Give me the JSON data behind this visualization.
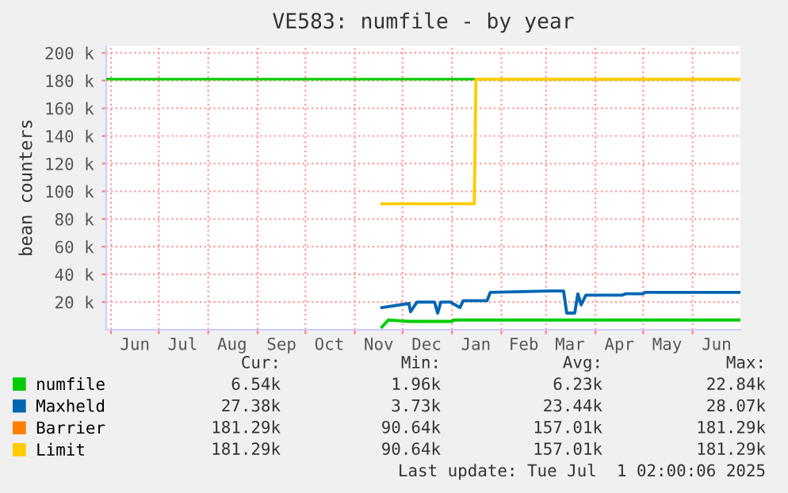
{
  "chart_data": {
    "type": "line",
    "title": "VE583: numfile - by year",
    "ylabel": "bean counters",
    "xlim": [
      "2024-05-29",
      "2025-07-01"
    ],
    "xticks": [
      {
        "value": "2024-06-01",
        "label": null
      },
      {
        "value": "2024-06-16",
        "label": "Jun"
      },
      {
        "value": "2024-07-01",
        "label": null
      },
      {
        "value": "2024-07-16",
        "label": "Jul"
      },
      {
        "value": "2024-08-01",
        "label": null
      },
      {
        "value": "2024-08-16",
        "label": "Aug"
      },
      {
        "value": "2024-09-01",
        "label": null
      },
      {
        "value": "2024-09-16",
        "label": "Sep"
      },
      {
        "value": "2024-10-01",
        "label": null
      },
      {
        "value": "2024-10-16",
        "label": "Oct"
      },
      {
        "value": "2024-11-01",
        "label": null
      },
      {
        "value": "2024-11-16",
        "label": "Nov"
      },
      {
        "value": "2024-12-01",
        "label": null
      },
      {
        "value": "2024-12-16",
        "label": "Dec"
      },
      {
        "value": "2025-01-01",
        "label": null
      },
      {
        "value": "2025-01-16",
        "label": "Jan"
      },
      {
        "value": "2025-02-01",
        "label": null
      },
      {
        "value": "2025-02-15",
        "label": "Feb"
      },
      {
        "value": "2025-03-01",
        "label": null
      },
      {
        "value": "2025-03-16",
        "label": "Mar"
      },
      {
        "value": "2025-04-01",
        "label": null
      },
      {
        "value": "2025-04-16",
        "label": "Apr"
      },
      {
        "value": "2025-05-01",
        "label": null
      },
      {
        "value": "2025-05-16",
        "label": "May"
      },
      {
        "value": "2025-06-01",
        "label": null
      },
      {
        "value": "2025-06-16",
        "label": "Jun"
      }
    ],
    "ylim": [
      0,
      205000
    ],
    "yticks": [
      {
        "value": 20000,
        "label": "20 k"
      },
      {
        "value": 40000,
        "label": "40 k"
      },
      {
        "value": 60000,
        "label": "60 k"
      },
      {
        "value": 80000,
        "label": "80 k"
      },
      {
        "value": 100000,
        "label": "100 k"
      },
      {
        "value": 120000,
        "label": "120 k"
      },
      {
        "value": 140000,
        "label": "140 k"
      },
      {
        "value": 160000,
        "label": "160 k"
      },
      {
        "value": 180000,
        "label": "180 k"
      },
      {
        "value": 200000,
        "label": "200 k"
      }
    ],
    "grid": true,
    "legend": "bottom left",
    "marker": "none",
    "line_style": "solid",
    "ref_lines": [
      {
        "axis": "y",
        "value": 181000,
        "color": "#00cc00"
      }
    ],
    "series": [
      {
        "name": "numfile",
        "color": "#00cc00",
        "x": [
          "2024-11-18",
          "2024-11-22",
          "2024-12-05",
          "2025-01-01",
          "2025-01-02",
          "2025-07-01"
        ],
        "values": [
          2000,
          7000,
          6000,
          6000,
          7000,
          7000
        ]
      },
      {
        "name": "Maxheld",
        "color": "#0066b3",
        "x": [
          "2024-11-18",
          "2024-12-05",
          "2024-12-06",
          "2024-12-10",
          "2024-12-21",
          "2024-12-23",
          "2024-12-25",
          "2024-12-31",
          "2025-01-06",
          "2025-01-08",
          "2025-01-23",
          "2025-01-25",
          "2025-03-03",
          "2025-03-12",
          "2025-03-14",
          "2025-03-19",
          "2025-03-21",
          "2025-03-23",
          "2025-03-26",
          "2025-04-18",
          "2025-04-20",
          "2025-05-01",
          "2025-05-02",
          "2025-07-01"
        ],
        "values": [
          16000,
          19000,
          13000,
          20000,
          20000,
          12000,
          20000,
          20000,
          16000,
          21000,
          21000,
          27000,
          28000,
          28000,
          12000,
          12000,
          26000,
          18000,
          25000,
          25000,
          26000,
          26000,
          27000,
          27000
        ]
      },
      {
        "name": "Barrier",
        "color": "#ff8000"
      },
      {
        "name": "Limit",
        "color": "#ffcc00",
        "x": [
          "2024-11-18",
          "2025-01-15",
          "2025-01-16",
          "2025-07-01"
        ],
        "values": [
          91000,
          91000,
          181000,
          181000
        ]
      }
    ],
    "annotations": [
      "Cur:",
      "Min:",
      "Avg:",
      "Max:",
      "6.54k",
      "1.96k",
      "6.23k",
      "22.84k",
      "27.38k",
      "3.73k",
      "23.44k",
      "28.07k",
      "181.29k",
      "90.64k",
      "157.01k",
      "181.29k",
      "181.29k",
      "90.64k",
      "157.01k",
      "181.29k",
      "Last update: Tue Jul  1 02:00:06 2025"
    ]
  }
}
